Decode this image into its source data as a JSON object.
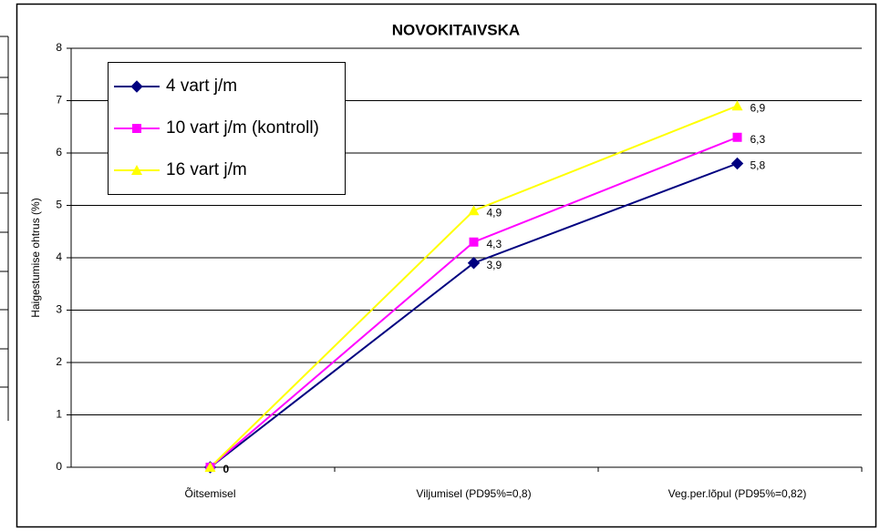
{
  "chart_data": {
    "type": "line",
    "title": "NOVOKITAIVSKA",
    "y_label": "Haigestumise ohtrus (%)",
    "categories": [
      "Õitsemisel",
      "Viljumisel (PD95%=0,8)",
      "Veg.per.lõpul (PD95%=0,82)"
    ],
    "series": [
      {
        "name": "4 vart j/m",
        "color": "#000080",
        "marker": "diamond",
        "values": [
          0,
          3.9,
          5.8
        ],
        "value_labels": [
          "0",
          "3,9",
          "5,8"
        ]
      },
      {
        "name": "10 vart j/m (kontroll)",
        "color": "#ff00ff",
        "marker": "square",
        "values": [
          0,
          4.3,
          6.3
        ],
        "value_labels": [
          null,
          "4,3",
          "6,3"
        ]
      },
      {
        "name": "16 vart j/m",
        "color": "#ffff00",
        "marker": "triangle",
        "values": [
          0,
          4.9,
          6.9
        ],
        "value_labels": [
          null,
          "4,9",
          "6,9"
        ]
      }
    ],
    "ylim": [
      0,
      8
    ],
    "yticks": [
      0,
      1,
      2,
      3,
      4,
      5,
      6,
      7,
      8
    ],
    "grid": true,
    "legend": "upper-left"
  }
}
